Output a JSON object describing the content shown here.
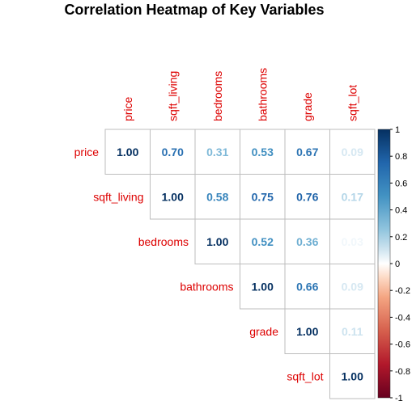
{
  "chart_data": {
    "type": "heatmap",
    "layout": "upper-triangle",
    "title": "Correlation Heatmap of Key Variables",
    "variables": [
      "price",
      "sqft_living",
      "bedrooms",
      "bathrooms",
      "grade",
      "sqft_lot"
    ],
    "matrix": [
      [
        1.0,
        0.7,
        0.31,
        0.53,
        0.67,
        0.09
      ],
      [
        0.7,
        1.0,
        0.58,
        0.75,
        0.76,
        0.17
      ],
      [
        0.31,
        0.58,
        1.0,
        0.52,
        0.36,
        0.03
      ],
      [
        0.53,
        0.75,
        0.52,
        1.0,
        0.66,
        0.09
      ],
      [
        0.67,
        0.76,
        0.36,
        0.66,
        1.0,
        0.11
      ],
      [
        0.09,
        0.17,
        0.03,
        0.09,
        0.11,
        1.0
      ]
    ],
    "value_format": "0.00",
    "color_scale": {
      "min": -1,
      "max": 1,
      "low_color": "#67001f",
      "mid_color": "#ffffff",
      "high_color": "#053061",
      "ticks": [
        1,
        0.8,
        0.6,
        0.4,
        0.2,
        0,
        -0.2,
        -0.4,
        -0.6,
        -0.8,
        -1
      ],
      "tick_labels": [
        "1",
        "0.8",
        "0.6",
        "0.4",
        "0.2",
        "0",
        "-0.2",
        "-0.4",
        "-0.6",
        "-0.8",
        "-1"
      ]
    },
    "label_color": "#dd0000",
    "grid_color": "#bdbdbd",
    "legend_position": "right"
  }
}
